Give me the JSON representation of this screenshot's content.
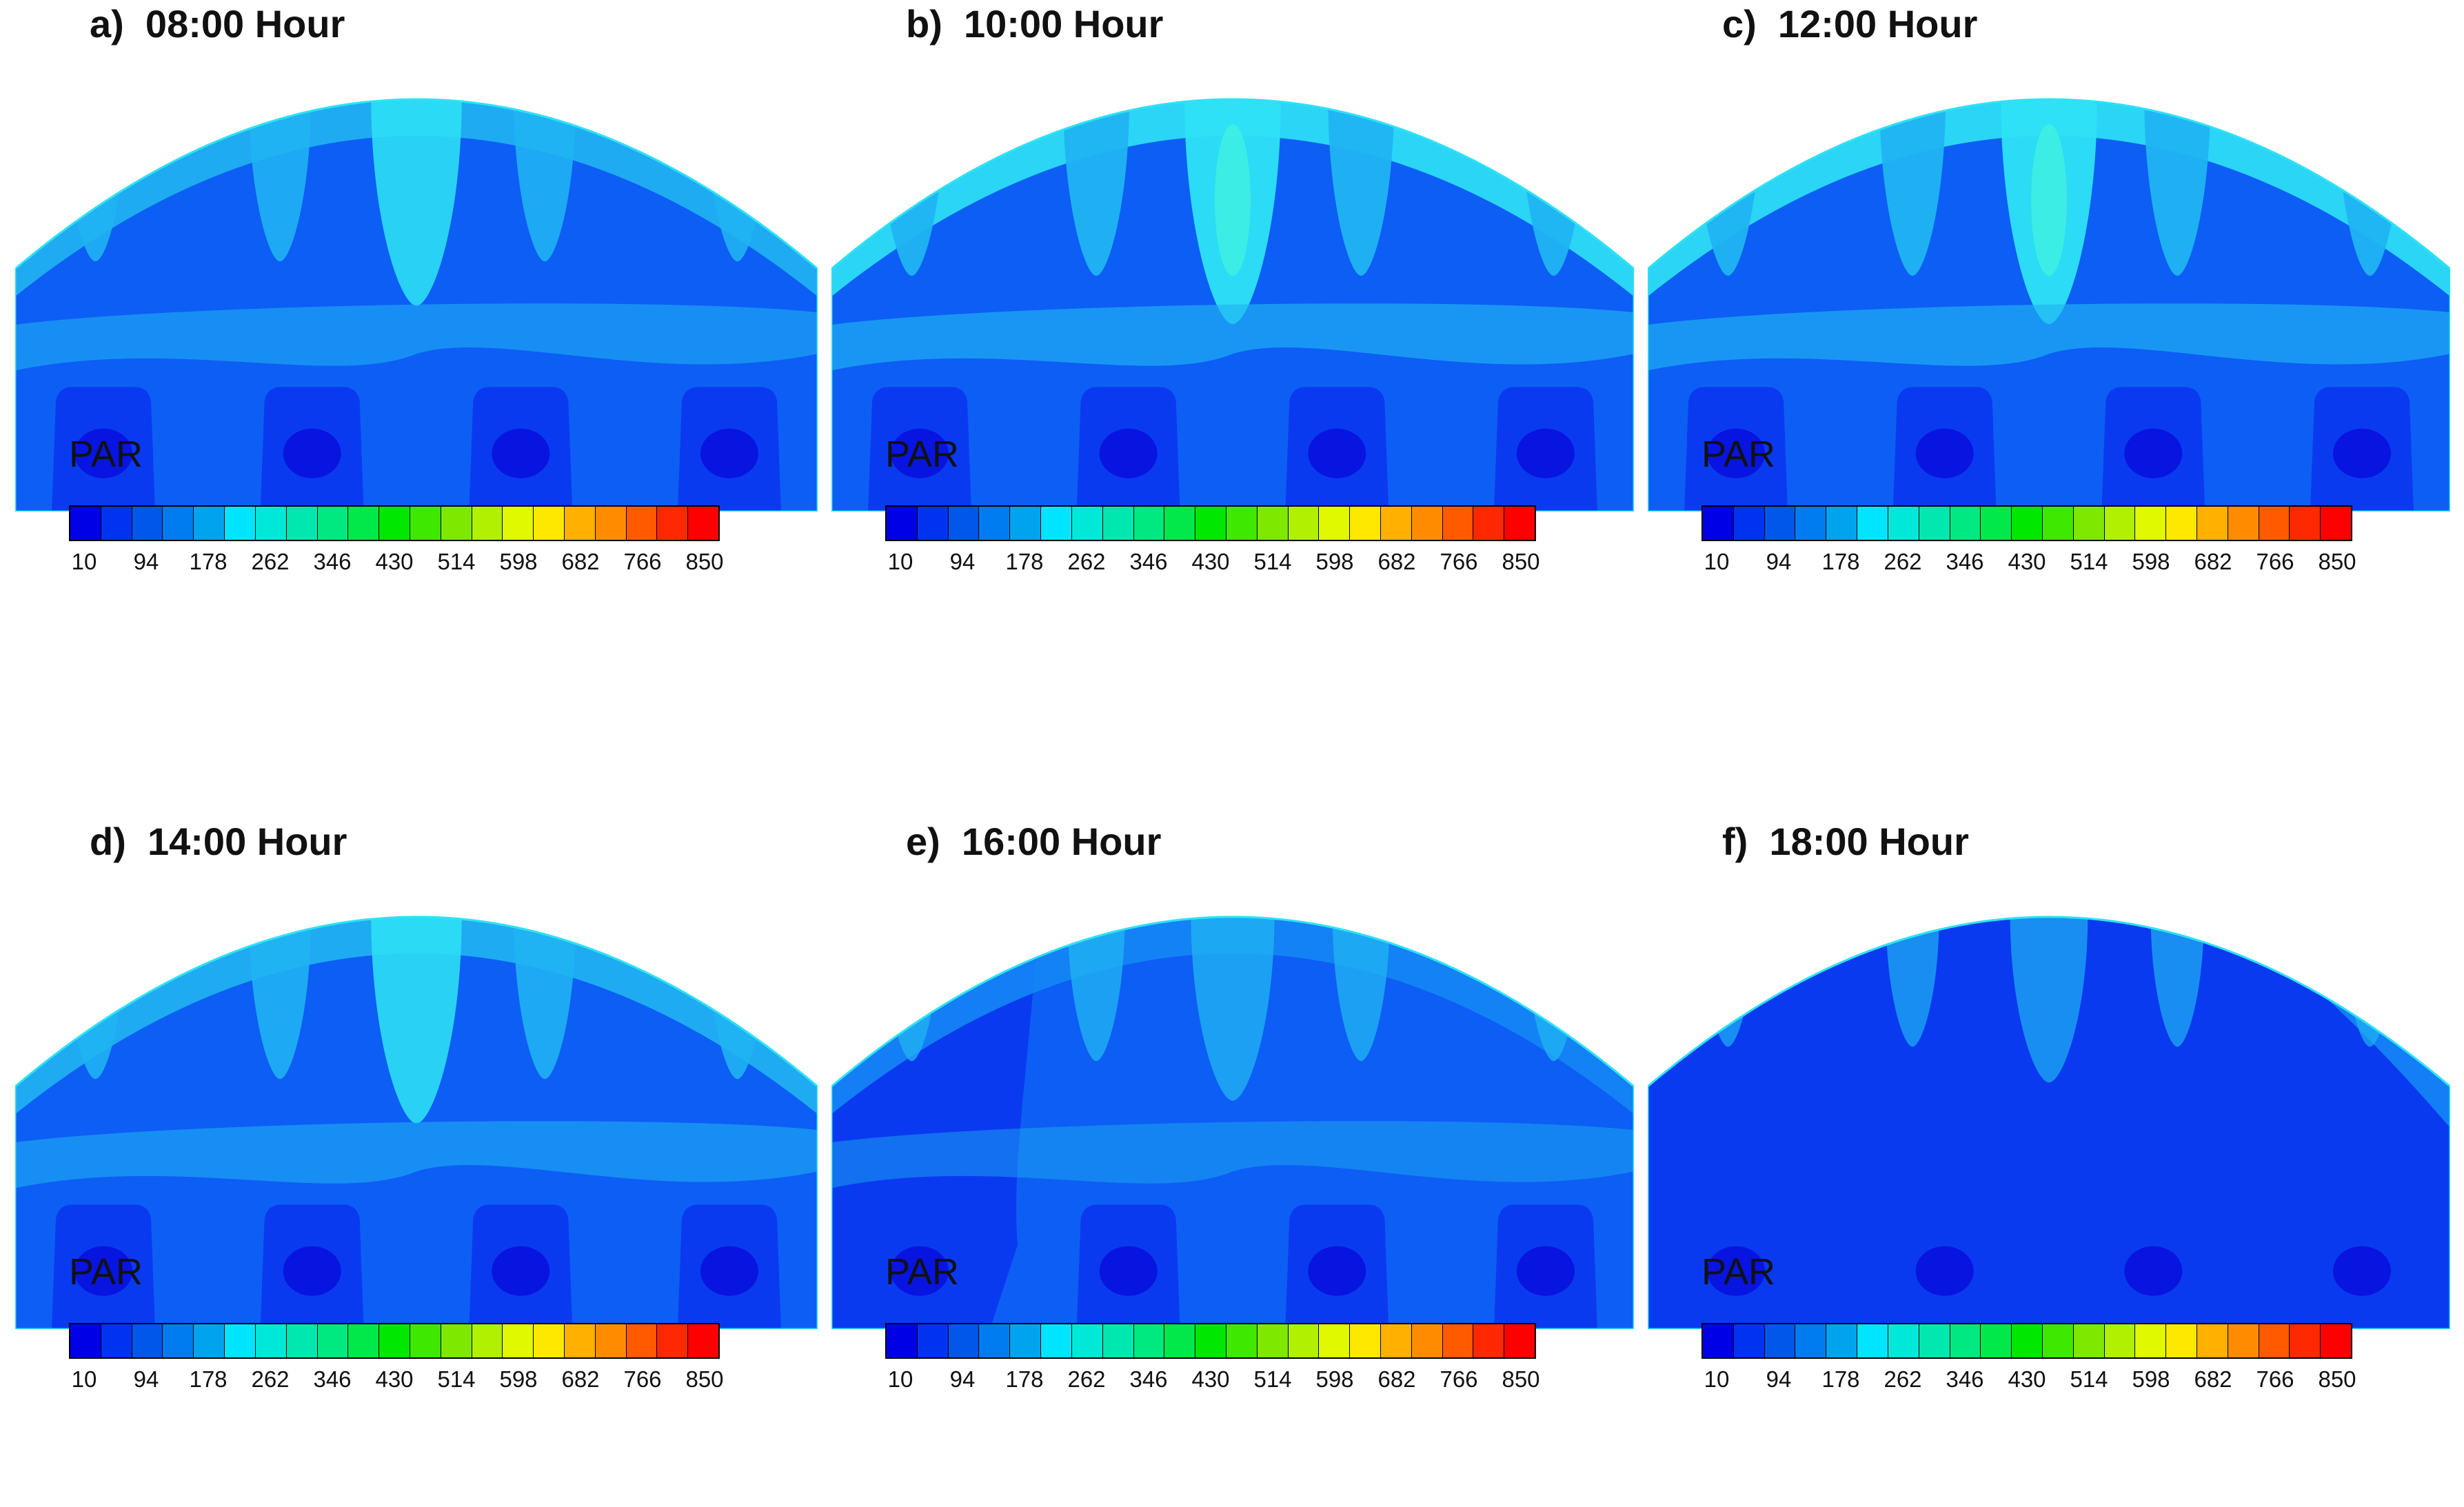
{
  "chart_data": [
    {
      "type": "heatmap",
      "panel_label": "a)",
      "title": "08:00 Hour",
      "colorbar_label": "PAR",
      "colorbar_ticks": [
        "10",
        "94",
        "178",
        "262",
        "346",
        "430",
        "514",
        "598",
        "682",
        "766",
        "850"
      ],
      "colorbar_range": [
        10,
        850
      ],
      "colorbar_levels": 21,
      "tone": "mid",
      "ridges": "medium",
      "dark_left": false
    },
    {
      "type": "heatmap",
      "panel_label": "b)",
      "title": "10:00 Hour",
      "colorbar_label": "PAR",
      "colorbar_ticks": [
        "10",
        "94",
        "178",
        "262",
        "346",
        "430",
        "514",
        "598",
        "682",
        "766",
        "850"
      ],
      "colorbar_range": [
        10,
        850
      ],
      "colorbar_levels": 21,
      "tone": "bright",
      "ridges": "strong",
      "dark_left": false
    },
    {
      "type": "heatmap",
      "panel_label": "c)",
      "title": "12:00 Hour",
      "colorbar_label": "PAR",
      "colorbar_ticks": [
        "10",
        "94",
        "178",
        "262",
        "346",
        "430",
        "514",
        "598",
        "682",
        "766",
        "850"
      ],
      "colorbar_range": [
        10,
        850
      ],
      "colorbar_levels": 21,
      "tone": "bright",
      "ridges": "strong",
      "dark_left": false
    },
    {
      "type": "heatmap",
      "panel_label": "d)",
      "title": "14:00 Hour",
      "colorbar_label": "PAR",
      "colorbar_ticks": [
        "10",
        "94",
        "178",
        "262",
        "346",
        "430",
        "514",
        "598",
        "682",
        "766",
        "850"
      ],
      "colorbar_range": [
        10,
        850
      ],
      "colorbar_levels": 21,
      "tone": "mid",
      "ridges": "medium",
      "dark_left": false
    },
    {
      "type": "heatmap",
      "panel_label": "e)",
      "title": "16:00 Hour",
      "colorbar_label": "PAR",
      "colorbar_ticks": [
        "10",
        "94",
        "178",
        "262",
        "346",
        "430",
        "514",
        "598",
        "682",
        "766",
        "850"
      ],
      "colorbar_range": [
        10,
        850
      ],
      "colorbar_levels": 21,
      "tone": "dim",
      "ridges": "weak",
      "dark_left": true
    },
    {
      "type": "heatmap",
      "panel_label": "f)",
      "title": "18:00 Hour",
      "colorbar_label": "PAR",
      "colorbar_ticks": [
        "10",
        "94",
        "178",
        "262",
        "346",
        "430",
        "514",
        "598",
        "682",
        "766",
        "850"
      ],
      "colorbar_range": [
        10,
        850
      ],
      "colorbar_levels": 21,
      "tone": "dark",
      "ridges": "faint",
      "dark_left": true
    }
  ],
  "colors": {
    "colorbar": [
      "#0000e6",
      "#0033f0",
      "#0057ea",
      "#007cf0",
      "#00a4ee",
      "#00e5ff",
      "#00e8d8",
      "#00e8b0",
      "#00e880",
      "#00e84a",
      "#00e800",
      "#3fe800",
      "#7ee800",
      "#b0f000",
      "#e0f800",
      "#ffe800",
      "#ffb000",
      "#ff8c00",
      "#ff5a00",
      "#ff2800",
      "#ff0000"
    ],
    "level_darkest": "#0814e0",
    "level_dark": "#0a3af0",
    "level_base": "#0d5ef5",
    "level_mid": "#1486f5",
    "level_light": "#20b4f2",
    "level_bright": "#2ee2f5",
    "level_peak": "#3ef0e0"
  }
}
